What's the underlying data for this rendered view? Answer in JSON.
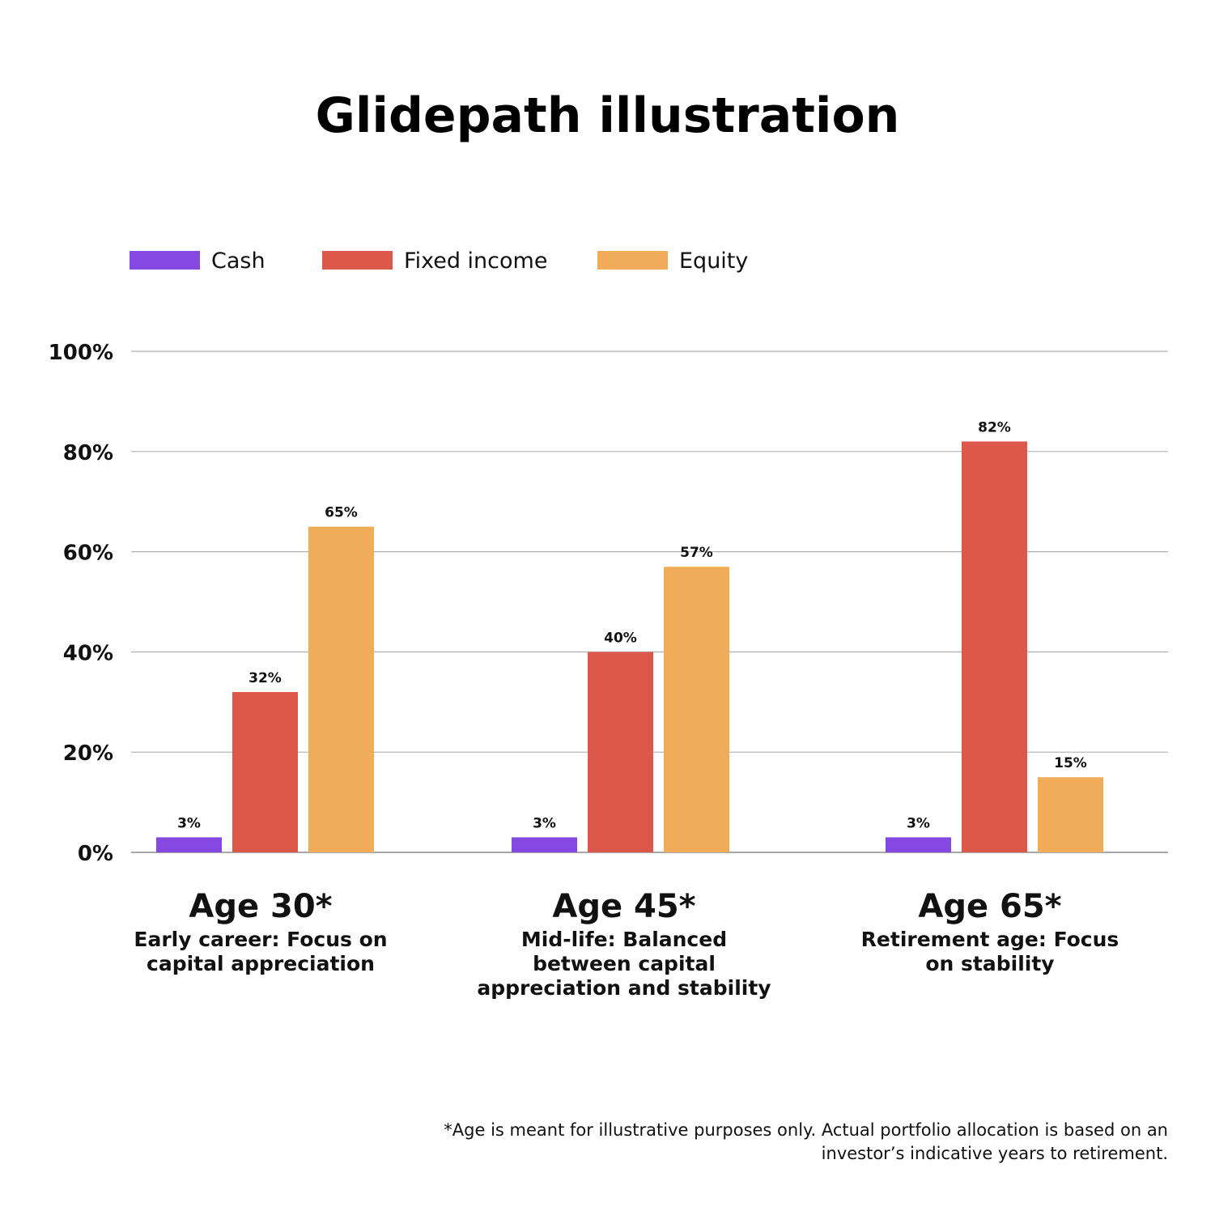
{
  "chart_data": {
    "type": "bar",
    "title": "Glidepath illustration",
    "categories": [
      "Age 30*",
      "Age 45*",
      "Age 65*"
    ],
    "category_subtitles": [
      "Early career: Focus on capital appreciation",
      "Mid-life: Balanced between capital appreciation and stability",
      "Retirement age: Focus on stability"
    ],
    "series": [
      {
        "name": "Cash",
        "color": "#8548e0",
        "values": [
          3,
          3,
          3
        ],
        "labels": [
          "3%",
          "3%",
          "3%"
        ]
      },
      {
        "name": "Fixed income",
        "color": "#db584b",
        "values": [
          32,
          40,
          82
        ],
        "labels": [
          "32%",
          "40%",
          "82%"
        ]
      },
      {
        "name": "Equity",
        "color": "#f1ac5a",
        "values": [
          65,
          57,
          15
        ],
        "labels": [
          "65%",
          "57%",
          "15%"
        ]
      }
    ],
    "ylim": [
      0,
      100
    ],
    "yticks": [
      0,
      20,
      40,
      60,
      80,
      100
    ],
    "ytick_labels": [
      "0%",
      "20%",
      "40%",
      "60%",
      "80%",
      "100%"
    ],
    "grid": true,
    "legend_position": "top-left",
    "xlabel": "",
    "ylabel": ""
  },
  "footnote": "*Age is meant for illustrative purposes only. Actual portfolio allocation is based on an investor’s indicative years to retirement."
}
